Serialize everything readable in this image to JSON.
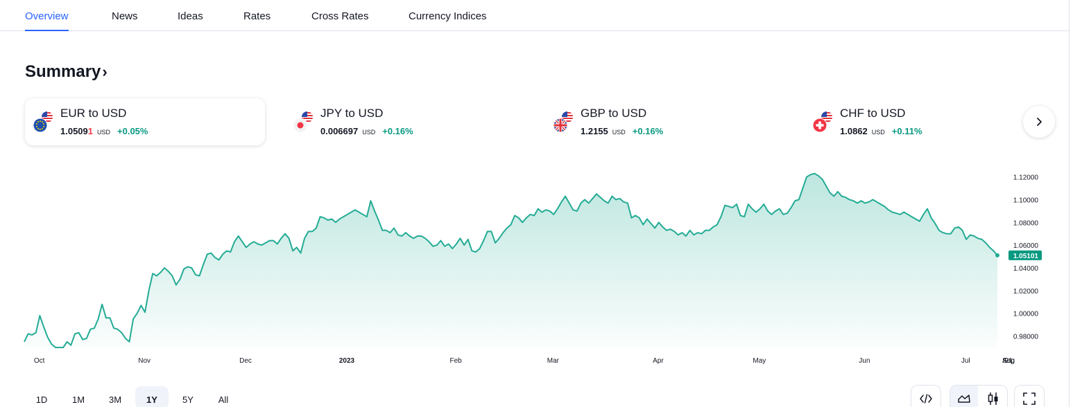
{
  "tabs": [
    "Overview",
    "News",
    "Ideas",
    "Rates",
    "Cross Rates",
    "Currency Indices"
  ],
  "summary": {
    "title": "Summary",
    "chevron": "›"
  },
  "cards": [
    {
      "name": "EUR to USD",
      "price_main": "1.0509",
      "price_last": "1",
      "currency": "USD",
      "change": "+0.05%",
      "flag": "eu-flag",
      "active": true
    },
    {
      "name": "JPY to USD",
      "price_main": "0.006697",
      "price_last": "",
      "currency": "USD",
      "change": "+0.16%",
      "flag": "japan-flag",
      "active": false
    },
    {
      "name": "GBP to USD",
      "price_main": "1.2155",
      "price_last": "",
      "currency": "USD",
      "change": "+0.16%",
      "flag": "uk-flag",
      "active": false
    },
    {
      "name": "CHF to USD",
      "price_main": "1.0862",
      "price_last": "",
      "currency": "USD",
      "change": "+0.11%",
      "flag": "swiss-flag",
      "active": false
    }
  ],
  "next_button": {
    "icon": "chevron-right-icon"
  },
  "chart_data": {
    "type": "area",
    "series": [
      {
        "values": [
          0.975,
          0.982,
          0.981,
          0.983,
          0.998,
          0.988,
          0.979,
          0.973,
          0.97,
          0.97,
          0.97,
          0.975,
          0.972,
          0.982,
          0.983,
          0.977,
          0.978,
          0.986,
          0.987,
          0.995,
          1.008,
          0.996,
          0.996,
          0.987,
          0.986,
          0.983,
          0.978,
          0.975,
          0.995,
          1.0,
          1.007,
          1.001,
          1.02,
          1.035,
          1.033,
          1.036,
          1.04,
          1.037,
          1.033,
          1.025,
          1.03,
          1.039,
          1.041,
          1.04,
          1.034,
          1.033,
          1.043,
          1.052,
          1.053,
          1.049,
          1.047,
          1.052,
          1.055,
          1.054,
          1.063,
          1.068,
          1.063,
          1.058,
          1.061,
          1.063,
          1.061,
          1.06,
          1.062,
          1.064,
          1.064,
          1.061,
          1.066,
          1.07,
          1.066,
          1.055,
          1.058,
          1.053,
          1.066,
          1.072,
          1.072,
          1.075,
          1.085,
          1.084,
          1.082,
          1.083,
          1.08,
          1.083,
          1.085,
          1.087,
          1.089,
          1.091,
          1.089,
          1.087,
          1.085,
          1.099,
          1.09,
          1.082,
          1.073,
          1.073,
          1.071,
          1.075,
          1.069,
          1.068,
          1.071,
          1.068,
          1.066,
          1.068,
          1.068,
          1.066,
          1.063,
          1.059,
          1.06,
          1.064,
          1.059,
          1.061,
          1.057,
          1.061,
          1.066,
          1.06,
          1.065,
          1.055,
          1.054,
          1.057,
          1.064,
          1.072,
          1.072,
          1.062,
          1.066,
          1.071,
          1.075,
          1.078,
          1.086,
          1.084,
          1.08,
          1.084,
          1.087,
          1.086,
          1.092,
          1.089,
          1.091,
          1.09,
          1.087,
          1.092,
          1.098,
          1.103,
          1.097,
          1.091,
          1.09,
          1.097,
          1.1,
          1.097,
          1.101,
          1.105,
          1.102,
          1.099,
          1.097,
          1.103,
          1.1,
          1.101,
          1.098,
          1.097,
          1.084,
          1.086,
          1.084,
          1.078,
          1.083,
          1.079,
          1.075,
          1.08,
          1.076,
          1.073,
          1.074,
          1.072,
          1.069,
          1.071,
          1.068,
          1.073,
          1.069,
          1.071,
          1.07,
          1.073,
          1.073,
          1.076,
          1.078,
          1.085,
          1.095,
          1.094,
          1.093,
          1.096,
          1.086,
          1.085,
          1.096,
          1.092,
          1.089,
          1.092,
          1.096,
          1.09,
          1.087,
          1.09,
          1.092,
          1.087,
          1.088,
          1.093,
          1.099,
          1.1,
          1.11,
          1.12,
          1.122,
          1.123,
          1.121,
          1.118,
          1.112,
          1.106,
          1.103,
          1.107,
          1.103,
          1.102,
          1.1,
          1.099,
          1.097,
          1.099,
          1.097,
          1.098,
          1.1,
          1.098,
          1.096,
          1.094,
          1.091,
          1.089,
          1.088,
          1.087,
          1.089,
          1.087,
          1.085,
          1.083,
          1.081,
          1.087,
          1.092,
          1.084,
          1.079,
          1.073,
          1.071,
          1.07,
          1.07,
          1.075,
          1.076,
          1.073,
          1.065,
          1.069,
          1.068,
          1.066,
          1.065,
          1.062,
          1.058,
          1.055,
          1.051
        ]
      }
    ],
    "x_ticks": [
      "Oct",
      "Nov",
      "Dec",
      "2023",
      "Feb",
      "Mar",
      "Apr",
      "May",
      "Jun",
      "Jul",
      "Aug",
      "Sep",
      "21"
    ],
    "y_ticks": [
      "1.12000",
      "1.10000",
      "1.08000",
      "1.06000",
      "1.04000",
      "1.02000",
      "1.00000",
      "0.98000"
    ],
    "ylim": [
      0.97,
      1.124
    ],
    "last_value_label": "1.05101",
    "line_color": "#22ab94",
    "fill_color": "#22ab94",
    "grid": false
  },
  "ranges": [
    "1D",
    "1M",
    "3M",
    "1Y",
    "5Y",
    "All"
  ],
  "active_range": "1Y",
  "tools": {
    "embed_icon": "code-icon",
    "area_icon": "area-chart-icon",
    "candles_icon": "candlestick-icon",
    "fullscreen_icon": "fullscreen-icon"
  }
}
